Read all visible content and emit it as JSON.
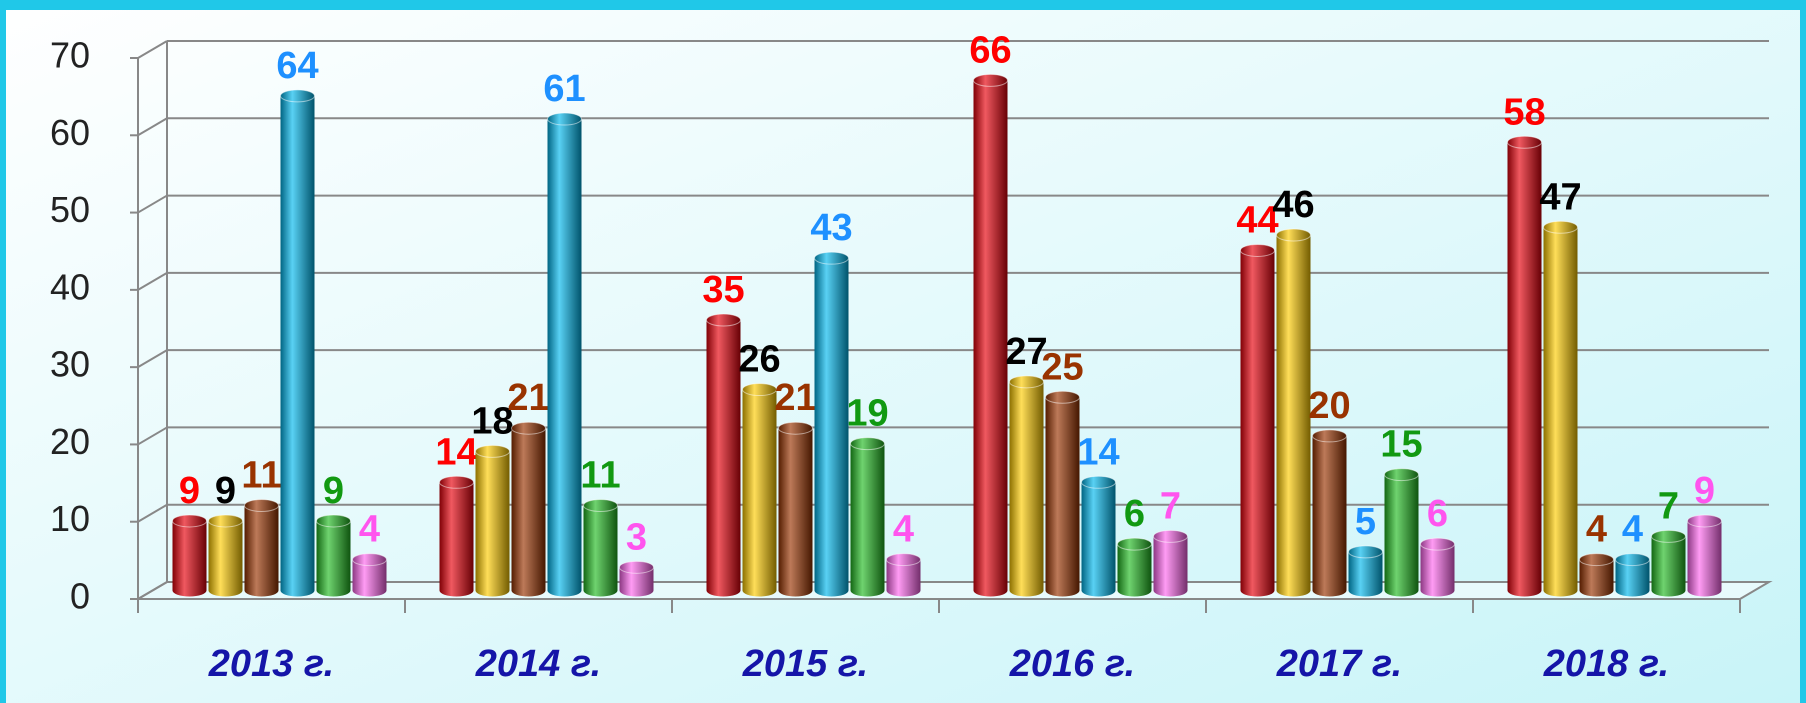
{
  "chart_data": {
    "type": "bar",
    "categories": [
      "2013 г.",
      "2014 г.",
      "2015 г.",
      "2016 г.",
      "2017 г.",
      "2018 г."
    ],
    "series": [
      {
        "color": "#e8000b",
        "label_color": "#ff0000",
        "values": [
          9,
          14,
          35,
          66,
          44,
          58
        ]
      },
      {
        "color": "#ffcc00",
        "label_color": "#000000",
        "values": [
          9,
          18,
          26,
          27,
          46,
          47
        ]
      },
      {
        "color": "#993300",
        "label_color": "#993300",
        "values": [
          11,
          21,
          21,
          25,
          20,
          4
        ]
      },
      {
        "color": "#00b8ee",
        "label_color": "#1e90ff",
        "values": [
          64,
          61,
          43,
          14,
          5,
          4
        ]
      },
      {
        "color": "#22bb22",
        "label_color": "#119911",
        "values": [
          9,
          11,
          19,
          6,
          15,
          7
        ]
      },
      {
        "color": "#ff66ee",
        "label_color": "#ff55ee",
        "values": [
          4,
          3,
          4,
          7,
          6,
          9
        ]
      }
    ],
    "ylim": [
      0,
      70
    ],
    "yticks": [
      0,
      10,
      20,
      30,
      40,
      50,
      60,
      70
    ],
    "grid": true
  }
}
